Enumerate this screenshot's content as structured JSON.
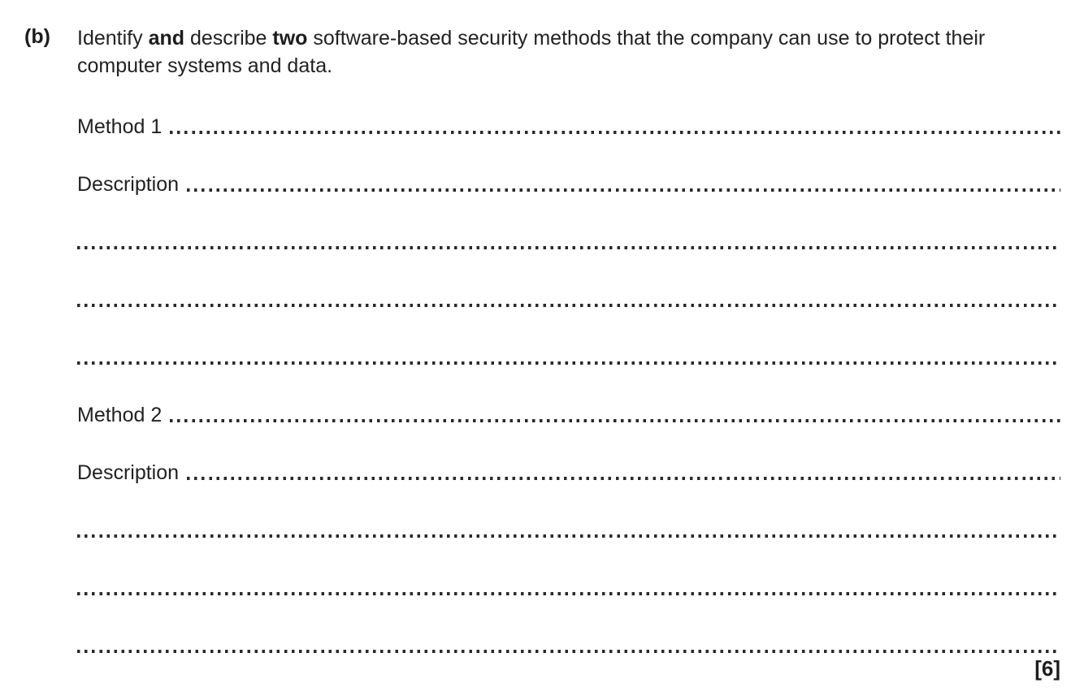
{
  "question": {
    "label": "(b)",
    "part1": "Identify ",
    "bold1": "and",
    "part2": " describe ",
    "bold2": "two",
    "part3": " software-based security methods that the company can use to protect their computer systems and data."
  },
  "form": {
    "method1_label": "Method 1",
    "description1_label": "Description",
    "method2_label": "Method 2",
    "description2_label": "Description"
  },
  "marks": "[6]"
}
